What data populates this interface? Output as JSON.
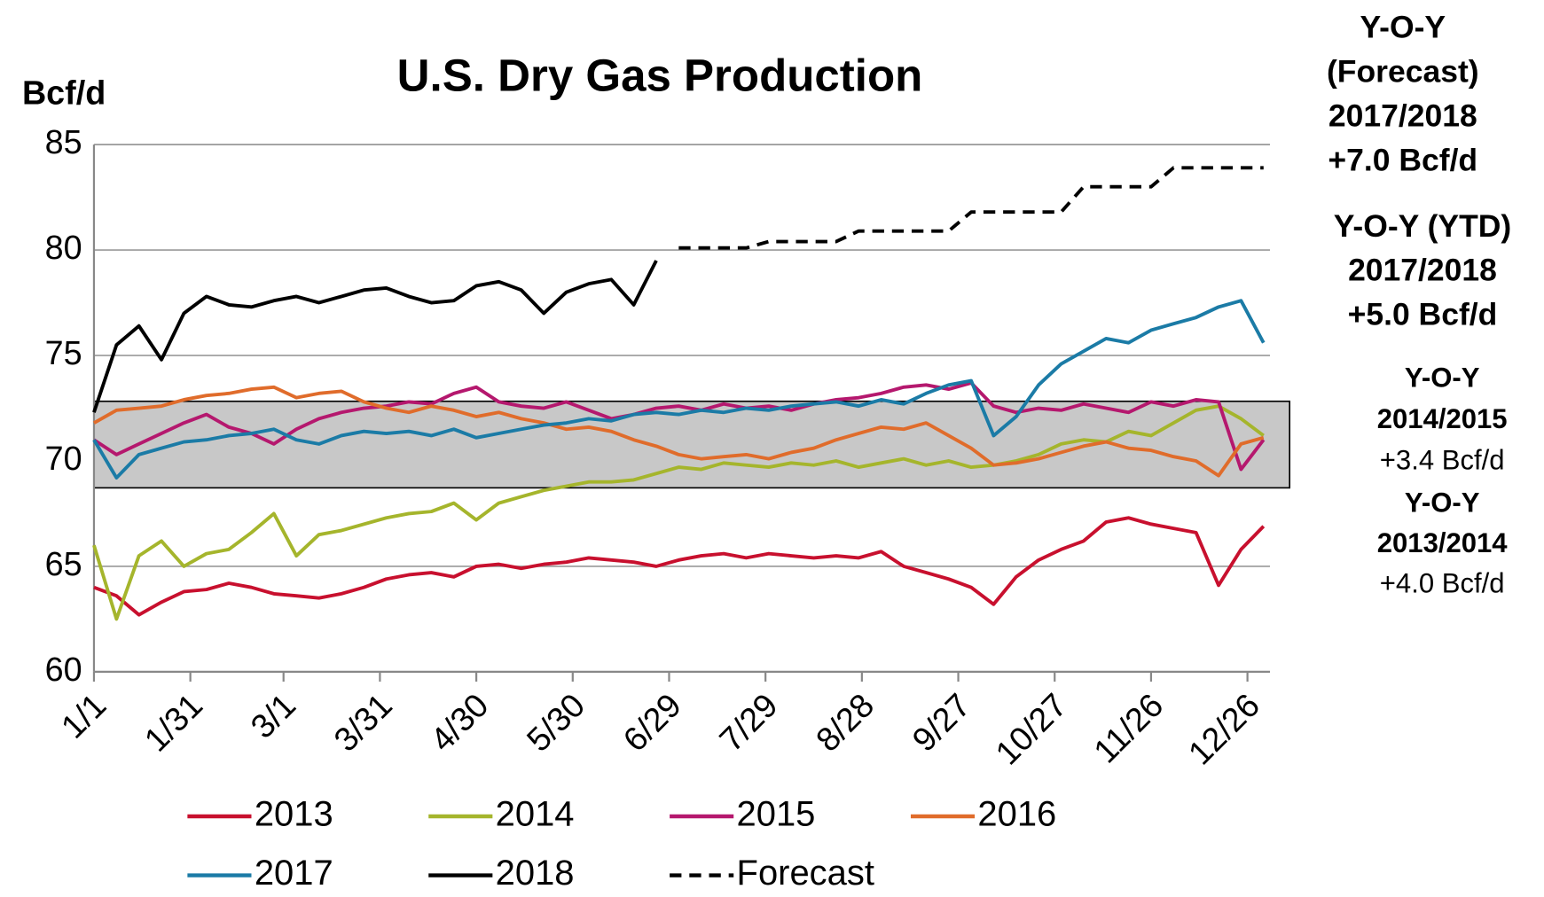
{
  "chart_data": {
    "type": "line",
    "title": "U.S. Dry Gas Production",
    "y_label": "Bcf/d",
    "x": [
      0,
      7,
      14,
      21,
      28,
      35,
      42,
      49,
      56,
      63,
      70,
      77,
      84,
      91,
      98,
      105,
      112,
      119,
      126,
      133,
      140,
      147,
      154,
      161,
      168,
      175,
      182,
      189,
      196,
      203,
      210,
      217,
      224,
      231,
      238,
      245,
      252,
      259,
      266,
      273,
      280,
      287,
      294,
      301,
      308,
      315,
      322,
      329,
      336,
      343,
      350,
      357,
      364
    ],
    "xlim": [
      0,
      366
    ],
    "xticks": [
      {
        "value": 0,
        "label": "1/1"
      },
      {
        "value": 30,
        "label": "1/31"
      },
      {
        "value": 59,
        "label": "3/1"
      },
      {
        "value": 89,
        "label": "3/31"
      },
      {
        "value": 119,
        "label": "4/30"
      },
      {
        "value": 149,
        "label": "5/30"
      },
      {
        "value": 179,
        "label": "6/29"
      },
      {
        "value": 209,
        "label": "7/29"
      },
      {
        "value": 239,
        "label": "8/28"
      },
      {
        "value": 269,
        "label": "9/27"
      },
      {
        "value": 299,
        "label": "10/27"
      },
      {
        "value": 329,
        "label": "11/26"
      },
      {
        "value": 359,
        "label": "12/26"
      }
    ],
    "ylim": [
      60,
      85
    ],
    "yticks": [
      60,
      65,
      70,
      75,
      80,
      85
    ],
    "grid": true,
    "series": [
      {
        "name": "2013",
        "color": "#c8102e",
        "values": [
          64.0,
          63.6,
          62.7,
          63.3,
          63.8,
          63.9,
          64.2,
          64.0,
          63.7,
          63.6,
          63.5,
          63.7,
          64.0,
          64.4,
          64.6,
          64.7,
          64.5,
          65.0,
          65.1,
          64.9,
          65.1,
          65.2,
          65.4,
          65.3,
          65.2,
          65.0,
          65.3,
          65.5,
          65.6,
          65.4,
          65.6,
          65.5,
          65.4,
          65.5,
          65.4,
          65.7,
          65.0,
          64.7,
          64.4,
          64.0,
          63.2,
          64.5,
          65.3,
          65.8,
          66.2,
          67.1,
          67.3,
          67.0,
          66.8,
          66.6,
          64.1,
          65.8,
          66.9
        ]
      },
      {
        "name": "2014",
        "color": "#a5b52c",
        "values": [
          66.0,
          62.5,
          65.5,
          66.2,
          65.0,
          65.6,
          65.8,
          66.6,
          67.5,
          65.5,
          66.5,
          66.7,
          67.0,
          67.3,
          67.5,
          67.6,
          68.0,
          67.2,
          68.0,
          68.3,
          68.6,
          68.8,
          69.0,
          69.0,
          69.1,
          69.4,
          69.7,
          69.6,
          69.9,
          69.8,
          69.7,
          69.9,
          69.8,
          70.0,
          69.7,
          69.9,
          70.1,
          69.8,
          70.0,
          69.7,
          69.8,
          70.0,
          70.3,
          70.8,
          71.0,
          70.9,
          71.4,
          71.2,
          71.8,
          72.4,
          72.6,
          72.0,
          71.2
        ]
      },
      {
        "name": "2015",
        "color": "#b5186e",
        "values": [
          71.0,
          70.3,
          70.8,
          71.3,
          71.8,
          72.2,
          71.6,
          71.3,
          70.8,
          71.5,
          72.0,
          72.3,
          72.5,
          72.6,
          72.8,
          72.7,
          73.2,
          73.5,
          72.8,
          72.6,
          72.5,
          72.8,
          72.4,
          72.0,
          72.2,
          72.5,
          72.6,
          72.4,
          72.7,
          72.5,
          72.6,
          72.4,
          72.7,
          72.9,
          73.0,
          73.2,
          73.5,
          73.6,
          73.4,
          73.7,
          72.6,
          72.3,
          72.5,
          72.4,
          72.7,
          72.5,
          72.3,
          72.8,
          72.6,
          72.9,
          72.8,
          69.6,
          71.0
        ]
      },
      {
        "name": "2016",
        "color": "#e06c2b",
        "values": [
          71.8,
          72.4,
          72.5,
          72.6,
          72.9,
          73.1,
          73.2,
          73.4,
          73.5,
          73.0,
          73.2,
          73.3,
          72.8,
          72.5,
          72.3,
          72.6,
          72.4,
          72.1,
          72.3,
          72.0,
          71.8,
          71.5,
          71.6,
          71.4,
          71.0,
          70.7,
          70.3,
          70.1,
          70.2,
          70.3,
          70.1,
          70.4,
          70.6,
          71.0,
          71.3,
          71.6,
          71.5,
          71.8,
          71.2,
          70.6,
          69.8,
          69.9,
          70.1,
          70.4,
          70.7,
          70.9,
          70.6,
          70.5,
          70.2,
          70.0,
          69.3,
          70.8,
          71.1
        ]
      },
      {
        "name": "2017",
        "color": "#1b7ba6",
        "values": [
          71.0,
          69.2,
          70.3,
          70.6,
          70.9,
          71.0,
          71.2,
          71.3,
          71.5,
          71.0,
          70.8,
          71.2,
          71.4,
          71.3,
          71.4,
          71.2,
          71.5,
          71.1,
          71.3,
          71.5,
          71.7,
          71.8,
          72.0,
          71.9,
          72.2,
          72.3,
          72.2,
          72.4,
          72.3,
          72.5,
          72.4,
          72.6,
          72.7,
          72.8,
          72.6,
          72.9,
          72.7,
          73.2,
          73.6,
          73.8,
          71.2,
          72.1,
          73.6,
          74.6,
          75.2,
          75.8,
          75.6,
          76.2,
          76.5,
          76.8,
          77.3,
          77.6,
          75.6
        ]
      },
      {
        "name": "2018",
        "color": "#000000",
        "values": [
          72.3,
          75.5,
          76.4,
          74.8,
          77.0,
          77.8,
          77.4,
          77.3,
          77.6,
          77.8,
          77.5,
          77.8,
          78.1,
          78.2,
          77.8,
          77.5,
          77.6,
          78.3,
          78.5,
          78.1,
          77.0,
          78.0,
          78.4,
          78.6,
          77.4,
          79.5,
          null,
          null,
          null,
          null,
          null,
          null,
          null,
          null,
          null,
          null,
          null,
          null,
          null,
          null,
          null,
          null,
          null,
          null,
          null,
          null,
          null,
          null,
          null,
          null,
          null,
          null,
          null
        ]
      },
      {
        "name": "Forecast",
        "color": "#000000",
        "dashed": true,
        "values": [
          null,
          null,
          null,
          null,
          null,
          null,
          null,
          null,
          null,
          null,
          null,
          null,
          null,
          null,
          null,
          null,
          null,
          null,
          null,
          null,
          null,
          null,
          null,
          null,
          null,
          null,
          80.1,
          80.1,
          80.1,
          80.1,
          80.4,
          80.4,
          80.4,
          80.4,
          80.9,
          80.9,
          80.9,
          80.9,
          80.9,
          81.8,
          81.8,
          81.8,
          81.8,
          81.8,
          83.0,
          83.0,
          83.0,
          83.0,
          83.9,
          83.9,
          83.9,
          83.9,
          83.9
        ]
      }
    ],
    "annotations": [
      {
        "lines": [
          "Y-O-Y",
          "(Forecast)",
          "2017/2018",
          "+7.0 Bcf/d"
        ],
        "color": "#000000"
      },
      {
        "lines": [
          "Y-O-Y (YTD)",
          "2017/2018",
          "+5.0 Bcf/d"
        ],
        "color": "#000000"
      },
      {
        "lines": [
          "Y-O-Y",
          "2014/2015",
          "+3.4 Bcf/d"
        ],
        "color": "#b5186e"
      },
      {
        "lines": [
          "Y-O-Y",
          "2013/2014",
          "+4.0 Bcf/d"
        ],
        "color": "#a5b52c"
      }
    ]
  }
}
